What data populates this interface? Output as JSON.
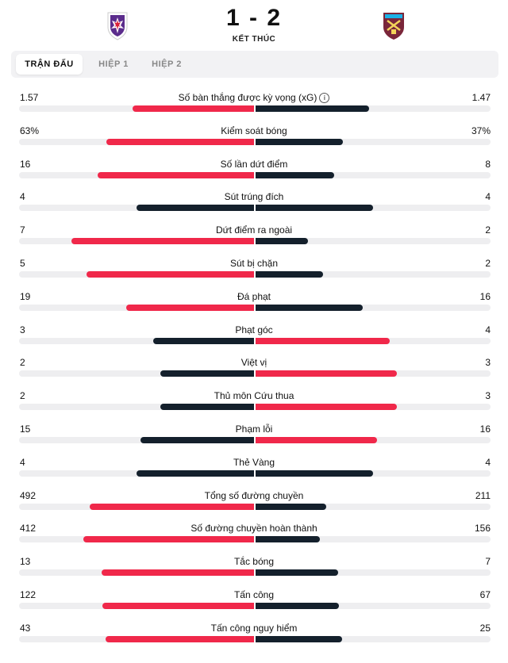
{
  "match": {
    "score": "1 - 2",
    "status": "KẾT THÚC",
    "home_crest": "fiorentina-crest-icon",
    "away_crest": "west-ham-crest-icon"
  },
  "tabs": [
    {
      "label": "TRẬN ĐẤU",
      "active": true
    },
    {
      "label": "HIỆP 1",
      "active": false
    },
    {
      "label": "HIỆP 2",
      "active": false
    }
  ],
  "colors": {
    "accent": "#f0284a",
    "dark": "#14202c",
    "track": "#eeeef0"
  },
  "stats": [
    {
      "name": "Số bàn thắng được kỳ vọng (xG)",
      "home": "1.57",
      "away": "1.47",
      "info": true
    },
    {
      "name": "Kiểm soát bóng",
      "home": "63%",
      "away": "37%"
    },
    {
      "name": "Số lần dứt điểm",
      "home": "16",
      "away": "8"
    },
    {
      "name": "Sút trúng đích",
      "home": "4",
      "away": "4"
    },
    {
      "name": "Dứt điểm ra ngoài",
      "home": "7",
      "away": "2"
    },
    {
      "name": "Sút bị chặn",
      "home": "5",
      "away": "2"
    },
    {
      "name": "Đá phạt",
      "home": "19",
      "away": "16"
    },
    {
      "name": "Phạt góc",
      "home": "3",
      "away": "4"
    },
    {
      "name": "Việt vị",
      "home": "2",
      "away": "3"
    },
    {
      "name": "Thủ môn Cứu thua",
      "home": "2",
      "away": "3"
    },
    {
      "name": "Phạm lỗi",
      "home": "15",
      "away": "16"
    },
    {
      "name": "Thẻ Vàng",
      "home": "4",
      "away": "4"
    },
    {
      "name": "Tổng số đường chuyền",
      "home": "492",
      "away": "211"
    },
    {
      "name": "Số đường chuyền hoàn thành",
      "home": "412",
      "away": "156"
    },
    {
      "name": "Tắc bóng",
      "home": "13",
      "away": "7"
    },
    {
      "name": "Tấn công",
      "home": "122",
      "away": "67"
    },
    {
      "name": "Tấn công nguy hiểm",
      "home": "43",
      "away": "25"
    }
  ]
}
